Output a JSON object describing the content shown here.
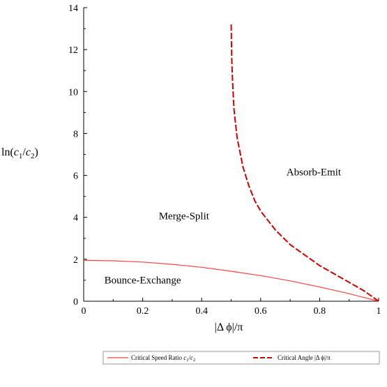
{
  "chart_data": {
    "type": "line",
    "xlabel": "|Δ ϕ|/π",
    "ylabel": {
      "prefix": "ln(",
      "c1": "c",
      "sub1": "1",
      "slash": "/",
      "c2": "c",
      "sub2": "2",
      "suffix": ")"
    },
    "xlim": [
      0,
      1
    ],
    "ylim": [
      0,
      14
    ],
    "x_ticks": [
      0,
      0.2,
      0.4,
      0.6,
      0.8,
      1
    ],
    "x_tick_labels": [
      "0",
      "0.2",
      "0.4",
      "0.6",
      "0.8",
      "1"
    ],
    "y_ticks": [
      0,
      2,
      4,
      6,
      8,
      10,
      12,
      14
    ],
    "y_tick_labels": [
      "0",
      "2",
      "4",
      "6",
      "8",
      "10",
      "12",
      "14"
    ],
    "grid": false,
    "legend_position": "bottom",
    "series": [
      {
        "name": "Critical Speed Ratio c1/c2",
        "legend_parts": {
          "text": "Critical Speed Ratio ",
          "c1": "c",
          "sub1": "1",
          "slash": "/",
          "c2": "c",
          "sub2": "2"
        },
        "color": "#ff4040",
        "style": "solid",
        "x": [
          0,
          0.1,
          0.2,
          0.3,
          0.4,
          0.5,
          0.6,
          0.7,
          0.8,
          0.9,
          1.0
        ],
        "y": [
          1.95,
          1.93,
          1.87,
          1.76,
          1.62,
          1.43,
          1.22,
          0.97,
          0.68,
          0.36,
          0
        ]
      },
      {
        "name": "Critical Angle |Δ ϕ|/π",
        "legend_parts": {
          "text": "Critical Angle |Δ ϕ|/π"
        },
        "color": "#d40000",
        "style": "dashed",
        "x": [
          0.5,
          0.502,
          0.505,
          0.51,
          0.52,
          0.54,
          0.56,
          0.58,
          0.6,
          0.65,
          0.7,
          0.8,
          0.9,
          0.95,
          1.0
        ],
        "y": [
          13.2,
          11.6,
          10.4,
          9.1,
          7.8,
          6.4,
          5.5,
          4.8,
          4.3,
          3.4,
          2.7,
          1.7,
          0.9,
          0.5,
          0
        ]
      }
    ],
    "annotations": [
      {
        "text": "Absorb-Emit",
        "x": 0.78,
        "y": 6.0
      },
      {
        "text": "Merge-Split",
        "x": 0.34,
        "y": 3.9
      },
      {
        "text": "Bounce-Exchange",
        "x": 0.2,
        "y": 0.85
      }
    ]
  }
}
